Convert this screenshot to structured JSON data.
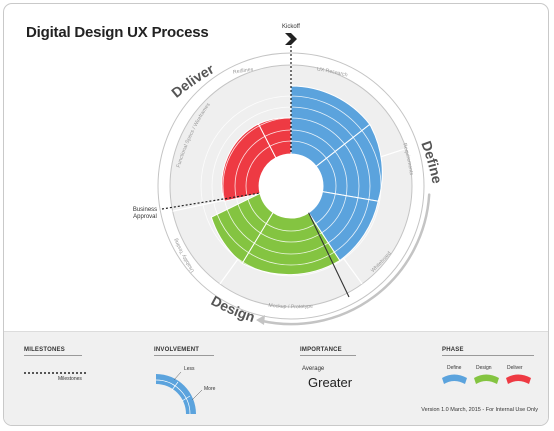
{
  "title": "Digital Design UX Process",
  "milestones": {
    "kickoff": "Kickoff",
    "business_approval_line1": "Business",
    "business_approval_line2": "Approval"
  },
  "phases": {
    "define": "Define",
    "design": "Design",
    "deliver": "Deliver"
  },
  "activities": {
    "ux_research": "UX Research",
    "requirements": "Requirements",
    "whiteboard": "Whiteboard",
    "mockup_prototype": "Mockup / Prototype",
    "usability_testing": "Usability Testing",
    "functional_specs": "Functional Specs / Wireframes",
    "redlines": "Redlines"
  },
  "legend": {
    "milestones": {
      "heading": "MILESTONES",
      "label": "Milestones"
    },
    "involvement": {
      "heading": "INVOLVEMENT",
      "less": "Less",
      "more": "More"
    },
    "importance": {
      "heading": "IMPORTANCE",
      "average": "Average",
      "greater": "Greater"
    },
    "phase": {
      "heading": "PHASE",
      "define": "Define",
      "design": "Design",
      "deliver": "Deliver"
    }
  },
  "version": "Version 1.0 March, 2015 - For Internal Use Only",
  "colors": {
    "define": "#5ba3dd",
    "design": "#84c441",
    "deliver": "#ee3a43",
    "ring": "#efefef",
    "text_dark": "#333333",
    "text_light": "#999999"
  }
}
